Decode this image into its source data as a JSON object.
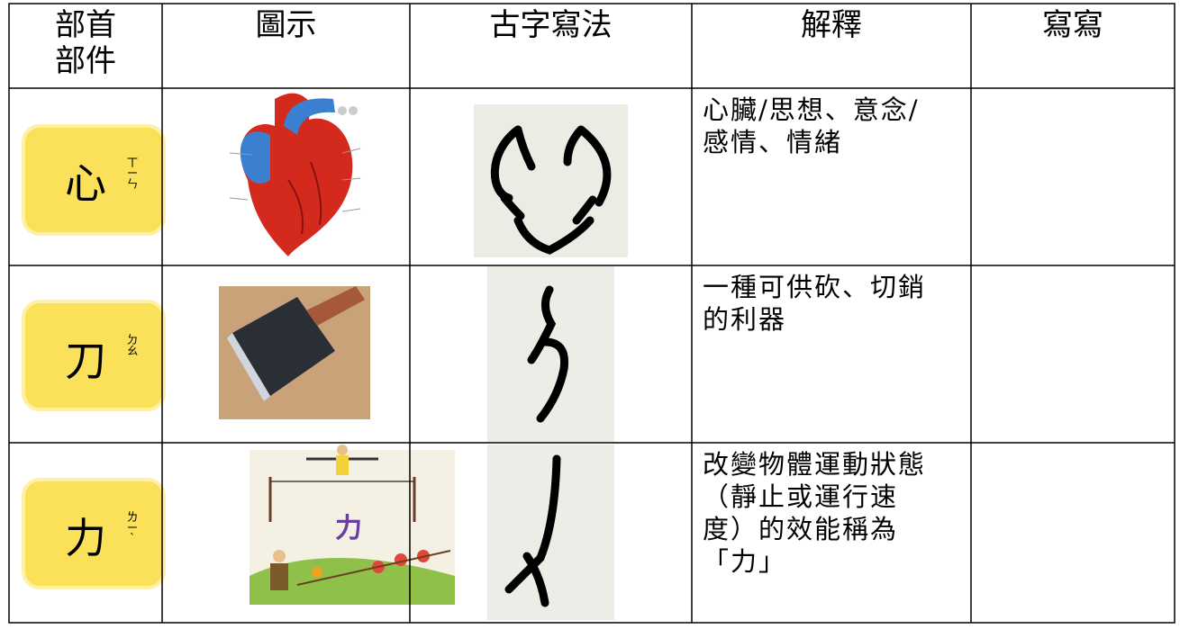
{
  "table": {
    "header": [
      [
        "部首",
        "部件"
      ],
      [
        "圖示"
      ],
      [
        "古字寫法"
      ],
      [
        "解釋"
      ],
      [
        "寫寫"
      ]
    ],
    "rows": [
      {
        "radical": "心",
        "zhuyin": [
          "ㄒ",
          "ㄧ",
          "ㄣ"
        ],
        "explanation": [
          "心臟/思想、意念/",
          "感情、情緒"
        ]
      },
      {
        "radical": "刀",
        "zhuyin": [
          "ㄉ",
          "ㄠ"
        ],
        "explanation": [
          "一種可供砍、切銷",
          "的利器"
        ]
      },
      {
        "radical": "力",
        "zhuyin": [
          "ㄌ",
          "ㄧˋ"
        ],
        "explanation": [
          "改變物體運動狀態",
          "（靜止或運行速",
          "度）的效能稱為",
          "「力」"
        ],
        "picture_text": "力"
      }
    ]
  }
}
